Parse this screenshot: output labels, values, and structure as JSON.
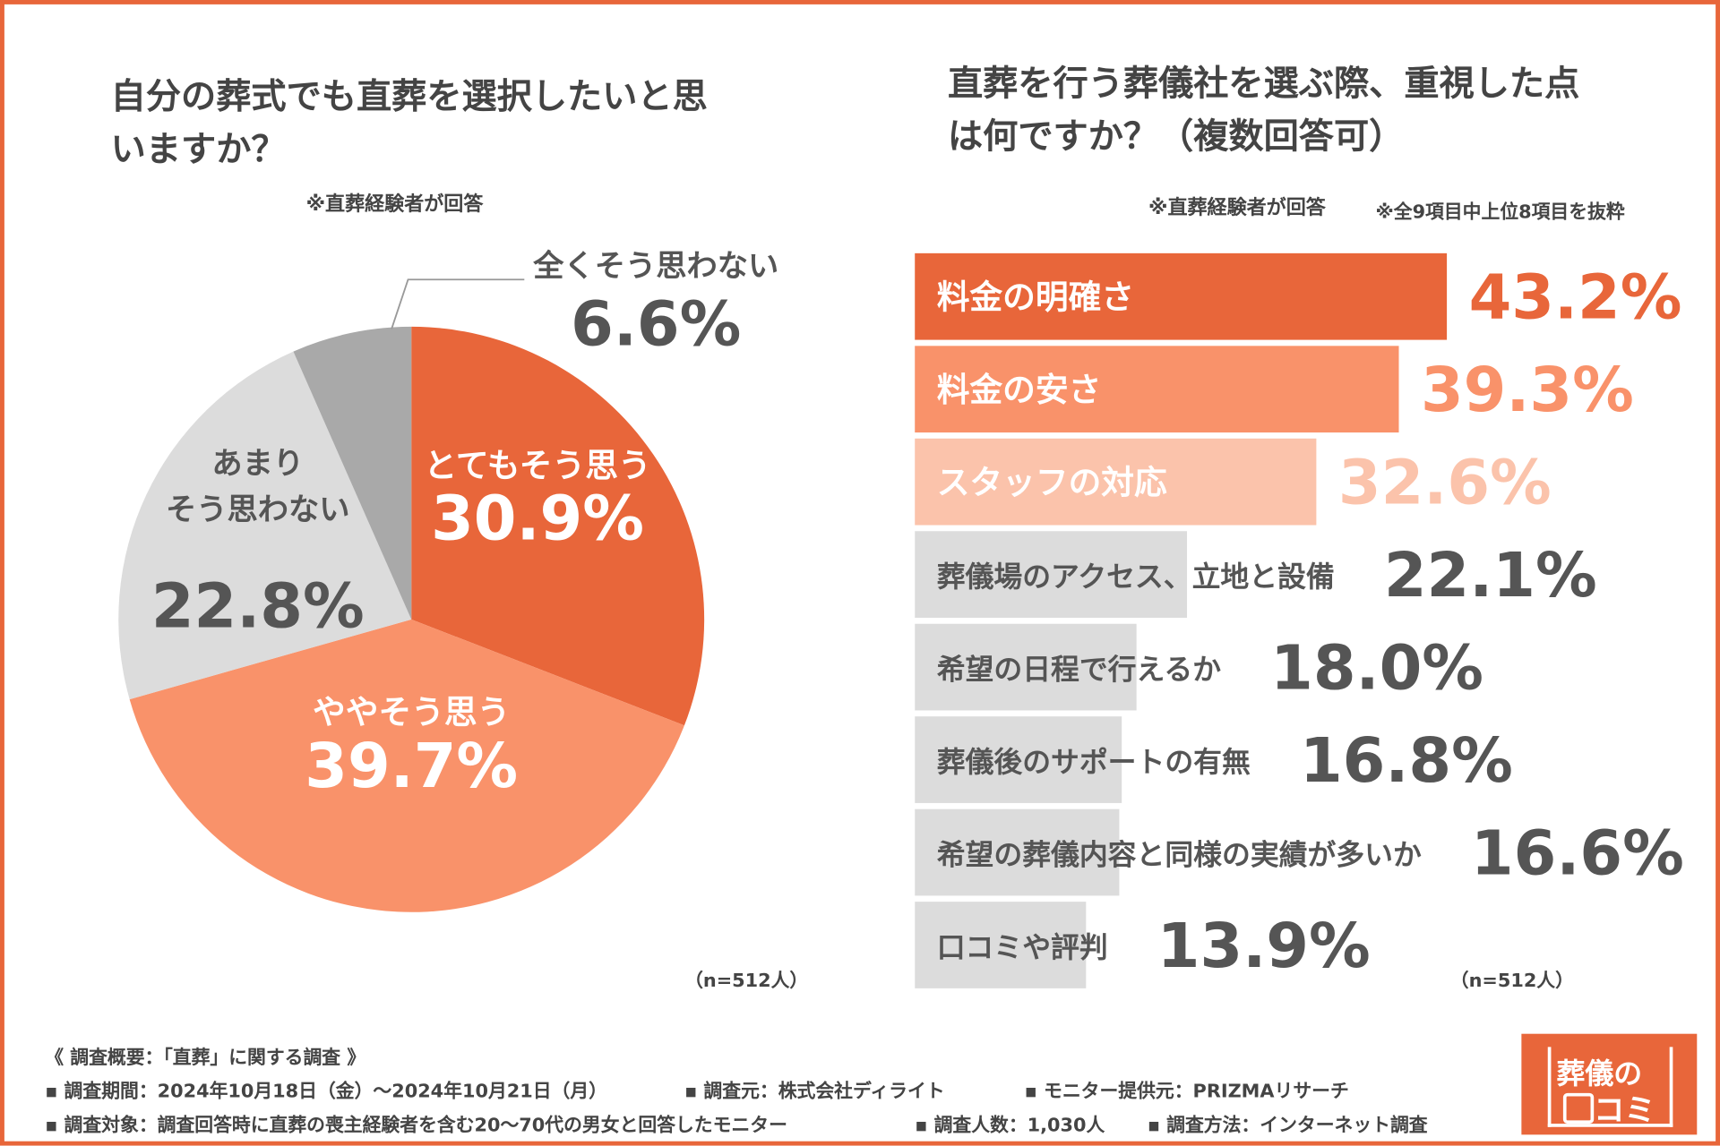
{
  "chart_data": [
    {
      "type": "pie",
      "title": "自分の葬式でも直葬を選択したいと思いますか？",
      "subtitle": "※直葬経験者が回答",
      "categories": [
        "とてもそう思う",
        "ややそう思う",
        "あまり\nそう思わない",
        "全くそう思わない"
      ],
      "values": [
        30.9,
        39.7,
        22.8,
        6.6
      ],
      "value_labels": [
        "30.9%",
        "39.7%",
        "22.8%",
        "6.6%"
      ],
      "colors": [
        "#e8663a",
        "#f9926a",
        "#dcdcdc",
        "#a9a9a9"
      ],
      "note": "（n=512人）"
    },
    {
      "type": "hbar",
      "title": "直葬を行う葬儀社を選ぶ際、重視した点は何ですか？（複数回答可）",
      "subtitle": "※直葬経験者が回答",
      "annotation": "※全9項目中上位8項目を抜粋",
      "categories": [
        "料金の明確さ",
        "料金の安さ",
        "スタッフの対応",
        "葬儀場のアクセス、立地と設備",
        "希望の日程で行えるか",
        "葬儀後のサポートの有無",
        "希望の葬儀内容と同様の実績が多いか",
        "口コミや評判"
      ],
      "values": [
        43.2,
        39.3,
        32.6,
        22.1,
        18.0,
        16.8,
        16.6,
        13.9
      ],
      "value_labels": [
        "43.2%",
        "39.3%",
        "32.6%",
        "22.1%",
        "18.0%",
        "16.8%",
        "16.6%",
        "13.9%"
      ],
      "colors": [
        "#e8663a",
        "#f9926a",
        "#fbc3ab",
        "#dcdcdc",
        "#dcdcdc",
        "#dcdcdc",
        "#dcdcdc",
        "#dcdcdc"
      ],
      "xlim": [
        0,
        43.2
      ],
      "note": "（n=512人）"
    }
  ],
  "footer": [
    "《 調査概要：「直葬」に関する調査 》",
    [
      "▪ 調査期間：2024年10月18日（金）〜2024年10月21日（月）",
      "▪ 調査元：株式会社ディライト",
      "▪ モニター提供元：PRIZMAリサーチ"
    ],
    [
      "▪ 調査対象：調査回答時に直葬の喪主経験者を含む20〜70代の男女と回答したモニター",
      "▪ 調査人数：1,030人",
      "▪ 調査方法：インターネット調査"
    ]
  ],
  "logo": [
    "葬儀の",
    "コミ"
  ]
}
